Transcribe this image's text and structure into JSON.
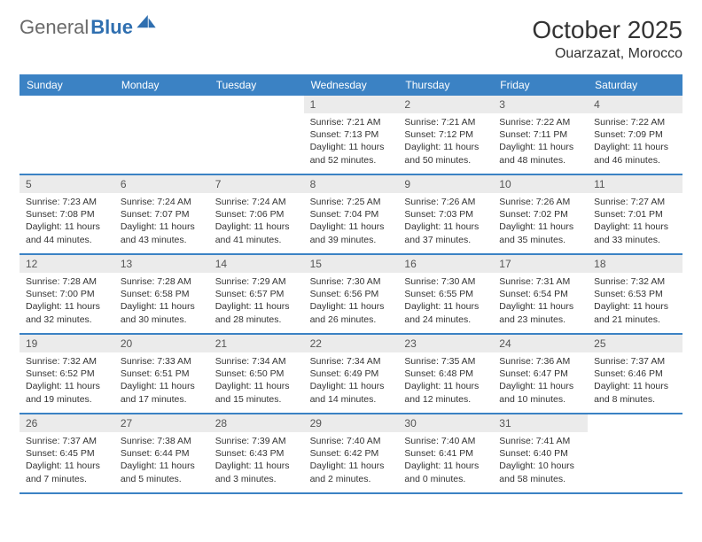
{
  "brand": {
    "part1": "General",
    "part2": "Blue"
  },
  "title": "October 2025",
  "location": "Ouarzazat, Morocco",
  "colors": {
    "header_bg": "#3b82c4",
    "header_text": "#ffffff",
    "daynum_bg": "#ebebeb",
    "daynum_text": "#555555",
    "body_text": "#333333",
    "rule": "#3b82c4",
    "logo_gray": "#6a6a6a",
    "logo_blue": "#2f6fb0"
  },
  "weekdays": [
    "Sunday",
    "Monday",
    "Tuesday",
    "Wednesday",
    "Thursday",
    "Friday",
    "Saturday"
  ],
  "weeks": [
    [
      {
        "n": "",
        "sr": "",
        "ss": "",
        "dl": ""
      },
      {
        "n": "",
        "sr": "",
        "ss": "",
        "dl": ""
      },
      {
        "n": "",
        "sr": "",
        "ss": "",
        "dl": ""
      },
      {
        "n": "1",
        "sr": "Sunrise: 7:21 AM",
        "ss": "Sunset: 7:13 PM",
        "dl": "Daylight: 11 hours and 52 minutes."
      },
      {
        "n": "2",
        "sr": "Sunrise: 7:21 AM",
        "ss": "Sunset: 7:12 PM",
        "dl": "Daylight: 11 hours and 50 minutes."
      },
      {
        "n": "3",
        "sr": "Sunrise: 7:22 AM",
        "ss": "Sunset: 7:11 PM",
        "dl": "Daylight: 11 hours and 48 minutes."
      },
      {
        "n": "4",
        "sr": "Sunrise: 7:22 AM",
        "ss": "Sunset: 7:09 PM",
        "dl": "Daylight: 11 hours and 46 minutes."
      }
    ],
    [
      {
        "n": "5",
        "sr": "Sunrise: 7:23 AM",
        "ss": "Sunset: 7:08 PM",
        "dl": "Daylight: 11 hours and 44 minutes."
      },
      {
        "n": "6",
        "sr": "Sunrise: 7:24 AM",
        "ss": "Sunset: 7:07 PM",
        "dl": "Daylight: 11 hours and 43 minutes."
      },
      {
        "n": "7",
        "sr": "Sunrise: 7:24 AM",
        "ss": "Sunset: 7:06 PM",
        "dl": "Daylight: 11 hours and 41 minutes."
      },
      {
        "n": "8",
        "sr": "Sunrise: 7:25 AM",
        "ss": "Sunset: 7:04 PM",
        "dl": "Daylight: 11 hours and 39 minutes."
      },
      {
        "n": "9",
        "sr": "Sunrise: 7:26 AM",
        "ss": "Sunset: 7:03 PM",
        "dl": "Daylight: 11 hours and 37 minutes."
      },
      {
        "n": "10",
        "sr": "Sunrise: 7:26 AM",
        "ss": "Sunset: 7:02 PM",
        "dl": "Daylight: 11 hours and 35 minutes."
      },
      {
        "n": "11",
        "sr": "Sunrise: 7:27 AM",
        "ss": "Sunset: 7:01 PM",
        "dl": "Daylight: 11 hours and 33 minutes."
      }
    ],
    [
      {
        "n": "12",
        "sr": "Sunrise: 7:28 AM",
        "ss": "Sunset: 7:00 PM",
        "dl": "Daylight: 11 hours and 32 minutes."
      },
      {
        "n": "13",
        "sr": "Sunrise: 7:28 AM",
        "ss": "Sunset: 6:58 PM",
        "dl": "Daylight: 11 hours and 30 minutes."
      },
      {
        "n": "14",
        "sr": "Sunrise: 7:29 AM",
        "ss": "Sunset: 6:57 PM",
        "dl": "Daylight: 11 hours and 28 minutes."
      },
      {
        "n": "15",
        "sr": "Sunrise: 7:30 AM",
        "ss": "Sunset: 6:56 PM",
        "dl": "Daylight: 11 hours and 26 minutes."
      },
      {
        "n": "16",
        "sr": "Sunrise: 7:30 AM",
        "ss": "Sunset: 6:55 PM",
        "dl": "Daylight: 11 hours and 24 minutes."
      },
      {
        "n": "17",
        "sr": "Sunrise: 7:31 AM",
        "ss": "Sunset: 6:54 PM",
        "dl": "Daylight: 11 hours and 23 minutes."
      },
      {
        "n": "18",
        "sr": "Sunrise: 7:32 AM",
        "ss": "Sunset: 6:53 PM",
        "dl": "Daylight: 11 hours and 21 minutes."
      }
    ],
    [
      {
        "n": "19",
        "sr": "Sunrise: 7:32 AM",
        "ss": "Sunset: 6:52 PM",
        "dl": "Daylight: 11 hours and 19 minutes."
      },
      {
        "n": "20",
        "sr": "Sunrise: 7:33 AM",
        "ss": "Sunset: 6:51 PM",
        "dl": "Daylight: 11 hours and 17 minutes."
      },
      {
        "n": "21",
        "sr": "Sunrise: 7:34 AM",
        "ss": "Sunset: 6:50 PM",
        "dl": "Daylight: 11 hours and 15 minutes."
      },
      {
        "n": "22",
        "sr": "Sunrise: 7:34 AM",
        "ss": "Sunset: 6:49 PM",
        "dl": "Daylight: 11 hours and 14 minutes."
      },
      {
        "n": "23",
        "sr": "Sunrise: 7:35 AM",
        "ss": "Sunset: 6:48 PM",
        "dl": "Daylight: 11 hours and 12 minutes."
      },
      {
        "n": "24",
        "sr": "Sunrise: 7:36 AM",
        "ss": "Sunset: 6:47 PM",
        "dl": "Daylight: 11 hours and 10 minutes."
      },
      {
        "n": "25",
        "sr": "Sunrise: 7:37 AM",
        "ss": "Sunset: 6:46 PM",
        "dl": "Daylight: 11 hours and 8 minutes."
      }
    ],
    [
      {
        "n": "26",
        "sr": "Sunrise: 7:37 AM",
        "ss": "Sunset: 6:45 PM",
        "dl": "Daylight: 11 hours and 7 minutes."
      },
      {
        "n": "27",
        "sr": "Sunrise: 7:38 AM",
        "ss": "Sunset: 6:44 PM",
        "dl": "Daylight: 11 hours and 5 minutes."
      },
      {
        "n": "28",
        "sr": "Sunrise: 7:39 AM",
        "ss": "Sunset: 6:43 PM",
        "dl": "Daylight: 11 hours and 3 minutes."
      },
      {
        "n": "29",
        "sr": "Sunrise: 7:40 AM",
        "ss": "Sunset: 6:42 PM",
        "dl": "Daylight: 11 hours and 2 minutes."
      },
      {
        "n": "30",
        "sr": "Sunrise: 7:40 AM",
        "ss": "Sunset: 6:41 PM",
        "dl": "Daylight: 11 hours and 0 minutes."
      },
      {
        "n": "31",
        "sr": "Sunrise: 7:41 AM",
        "ss": "Sunset: 6:40 PM",
        "dl": "Daylight: 10 hours and 58 minutes."
      },
      {
        "n": "",
        "sr": "",
        "ss": "",
        "dl": ""
      }
    ]
  ]
}
